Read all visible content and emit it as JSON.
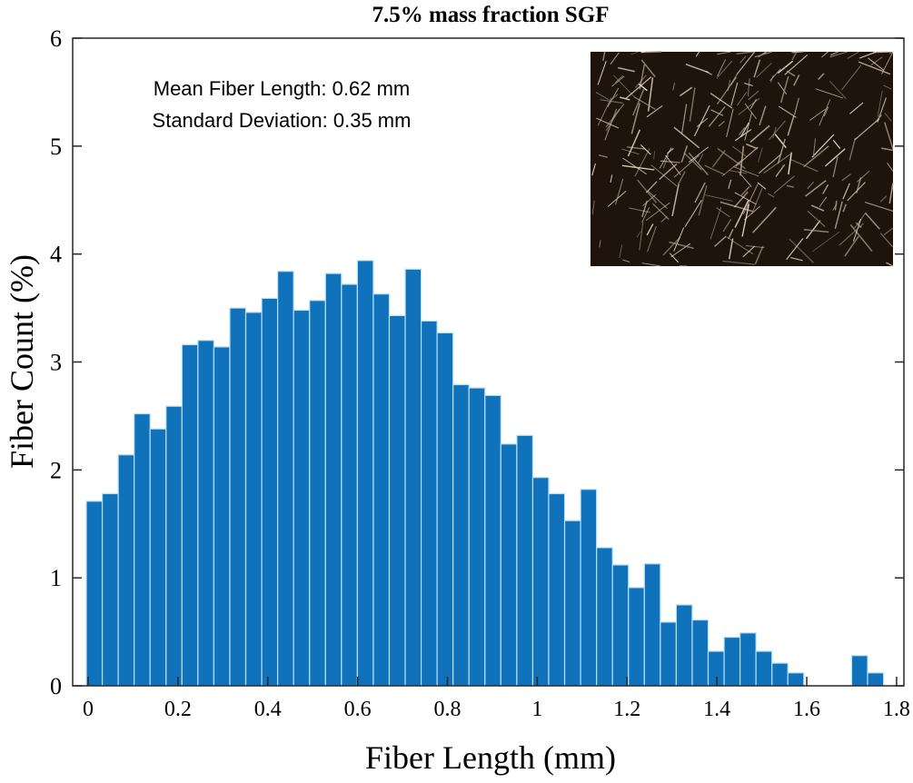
{
  "chart_data": {
    "type": "bar",
    "title": "7.5% mass fraction SGF",
    "xlabel": "Fiber Length (mm)",
    "ylabel": "Fiber Count (%)",
    "xlim": [
      -0.04,
      1.82
    ],
    "ylim": [
      0,
      6
    ],
    "xticks": [
      "0",
      "0.2",
      "0.4",
      "0.6",
      "0.8",
      "1",
      "1.2",
      "1.4",
      "1.6",
      "1.8"
    ],
    "xtick_values": [
      0,
      0.2,
      0.4,
      0.6,
      0.8,
      1.0,
      1.2,
      1.4,
      1.6,
      1.8
    ],
    "yticks": [
      "0",
      "1",
      "2",
      "3",
      "4",
      "5",
      "6"
    ],
    "ytick_values": [
      0,
      1,
      2,
      3,
      4,
      5,
      6
    ],
    "bin_start": -0.004,
    "bin_width": 0.0355,
    "values": [
      1.71,
      1.78,
      2.14,
      2.52,
      2.38,
      2.59,
      3.16,
      3.2,
      3.14,
      3.5,
      3.46,
      3.59,
      3.84,
      3.48,
      3.57,
      3.82,
      3.72,
      3.94,
      3.63,
      3.43,
      3.86,
      3.38,
      3.27,
      2.79,
      2.76,
      2.69,
      2.24,
      2.32,
      1.93,
      1.78,
      1.53,
      1.82,
      1.28,
      1.12,
      0.91,
      1.13,
      0.59,
      0.75,
      0.61,
      0.32,
      0.45,
      0.49,
      0.32,
      0.21,
      0.12,
      0,
      0,
      0,
      0.28,
      0.12
    ],
    "bar_color": "#0f72ba",
    "grid": false,
    "annotations": [
      "Mean Fiber Length: 0.62 mm",
      "Standard Deviation: 0.35 mm"
    ],
    "inset": "micrograph of fibers"
  }
}
